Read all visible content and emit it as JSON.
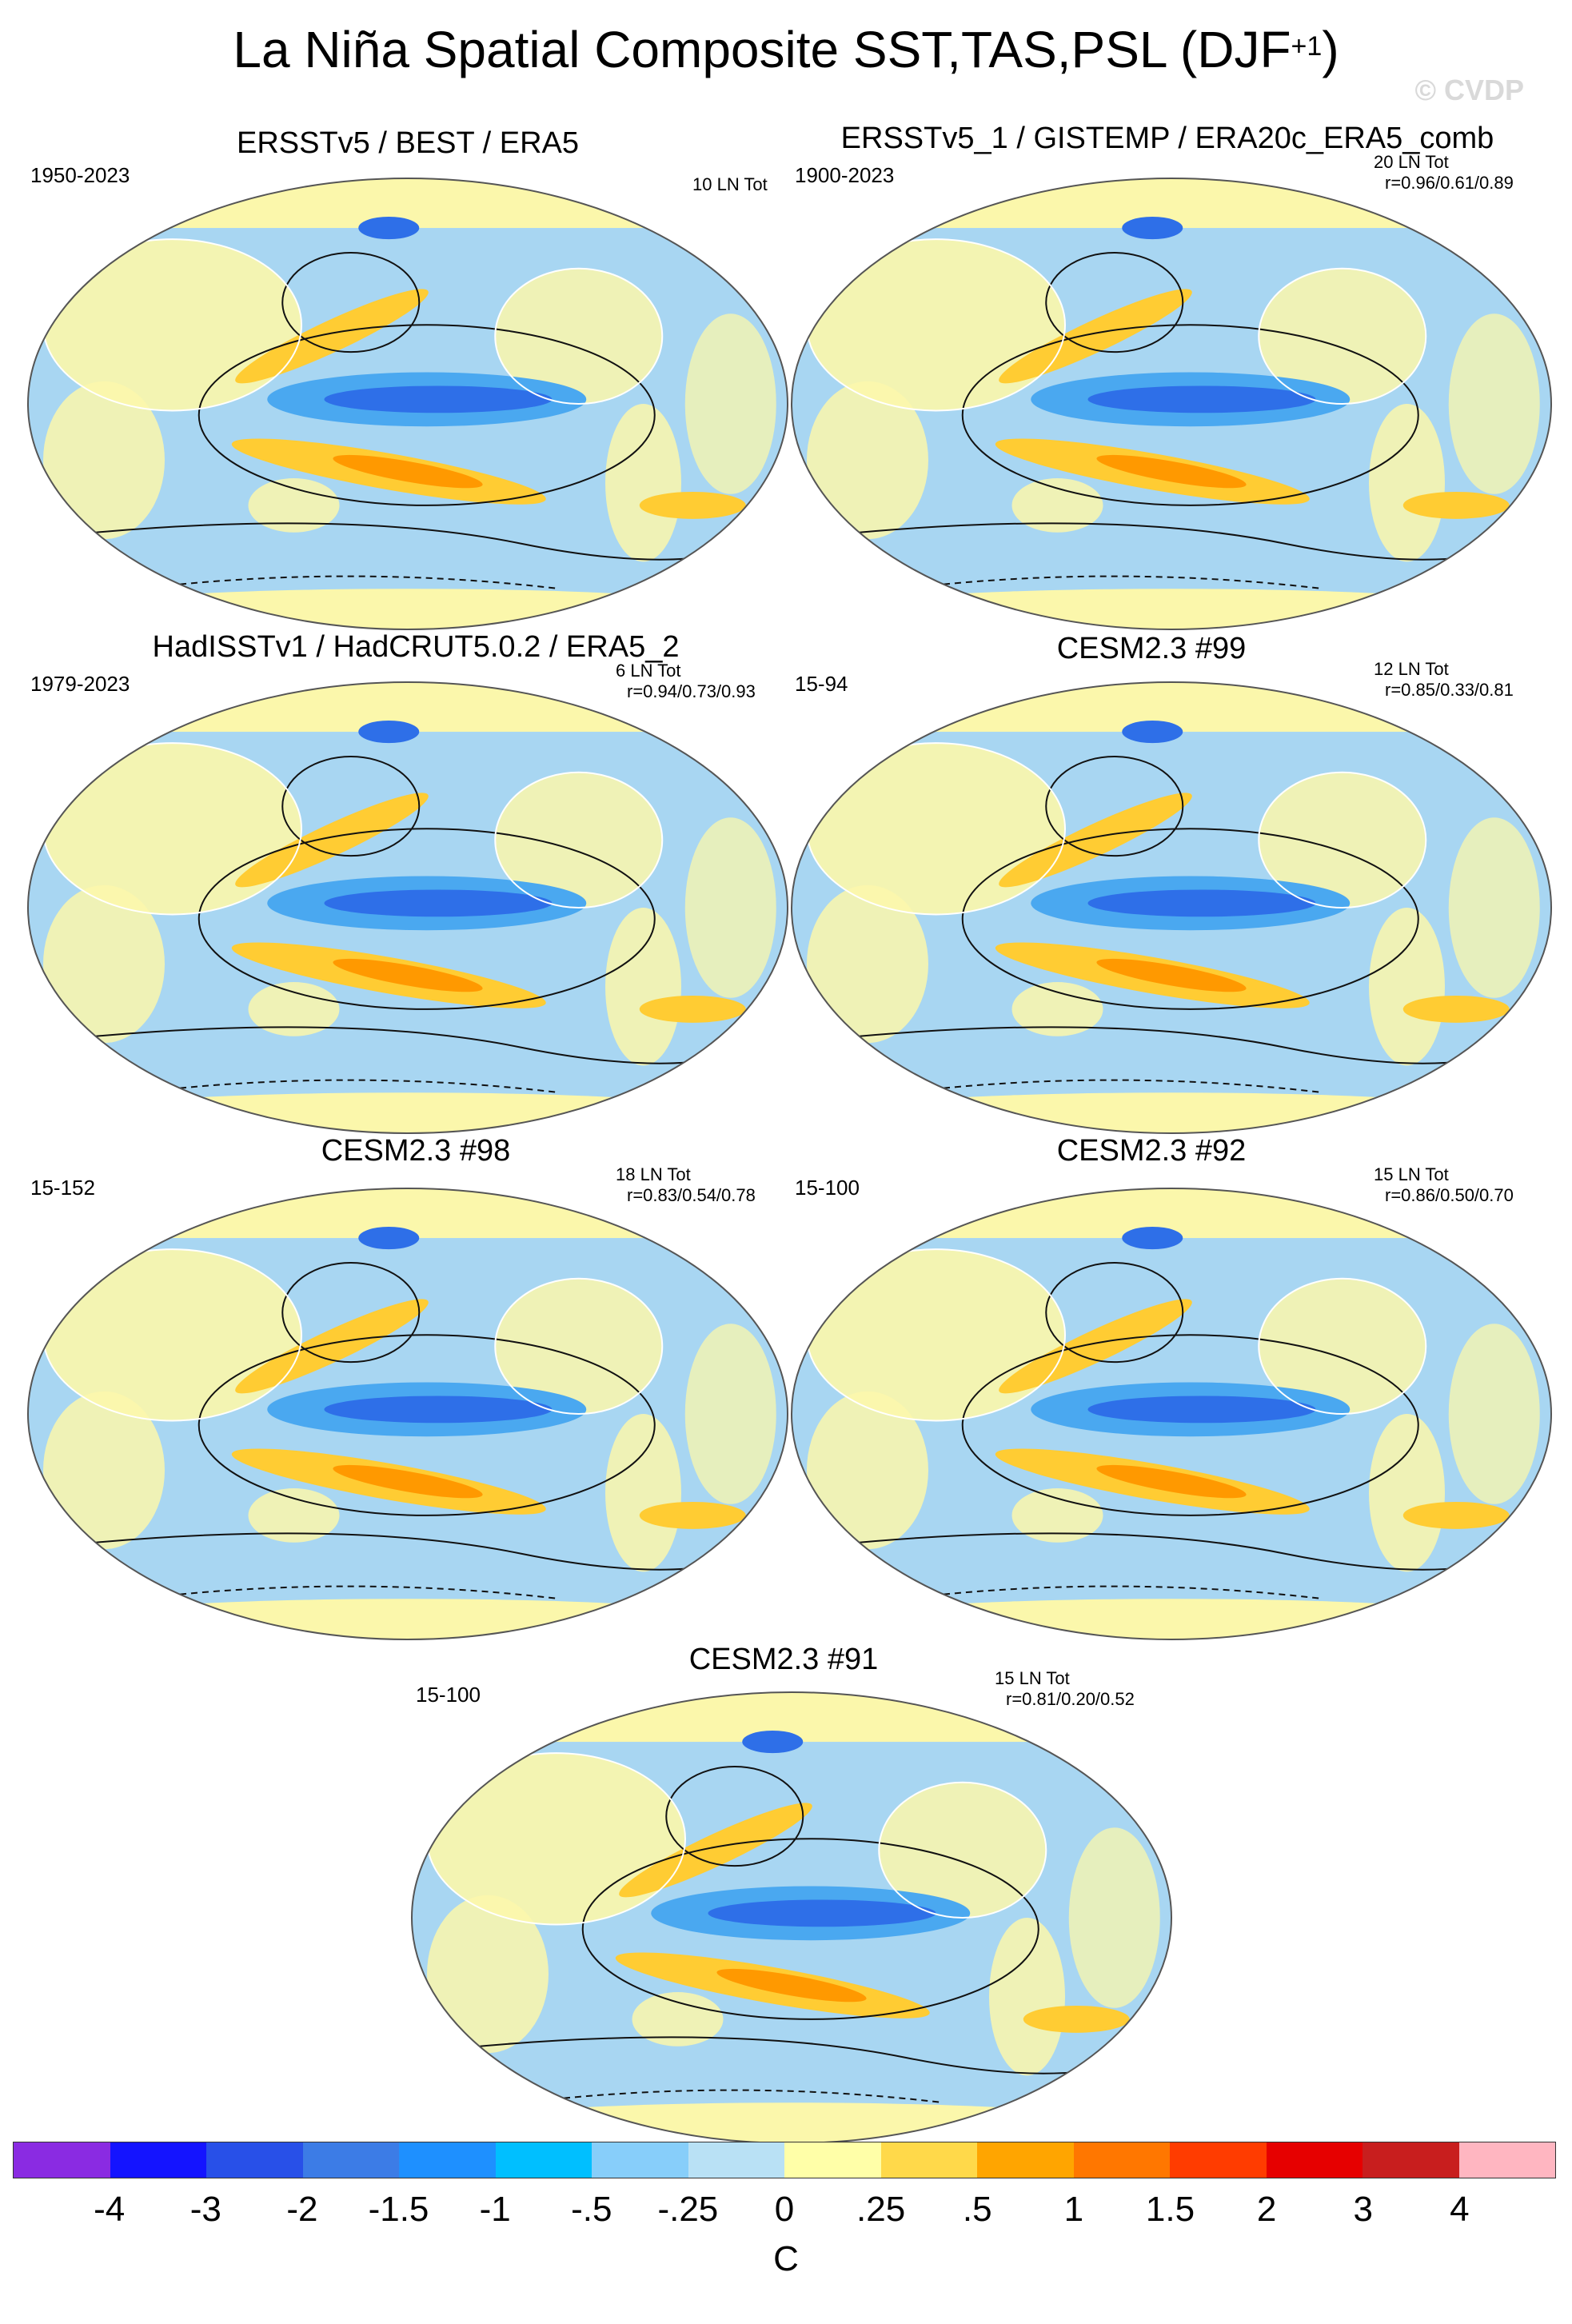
{
  "figure": {
    "title_main": "La Niña Spatial Composite SST,TAS,PSL (DJF",
    "title_sup": "+1",
    "title_close": ")",
    "watermark": "© CVDP"
  },
  "panels": [
    {
      "title": "ERSSTv5 / BEST / ERA5",
      "years": "1950-2023",
      "count": "10 LN Tot",
      "corr": ""
    },
    {
      "title": "ERSSTv5_1 / GISTEMP / ERA20c_ERA5_comb",
      "years": "1900-2023",
      "count": "20 LN Tot",
      "corr": "r=0.96/0.61/0.89"
    },
    {
      "title": "HadISSTv1 / HadCRUT5.0.2 / ERA5_2",
      "years": "1979-2023",
      "count": "6 LN Tot",
      "corr": "r=0.94/0.73/0.93"
    },
    {
      "title": "CESM2.3 #99",
      "years": "15-94",
      "count": "12 LN Tot",
      "corr": "r=0.85/0.33/0.81"
    },
    {
      "title": "CESM2.3 #98",
      "years": "15-152",
      "count": "18 LN Tot",
      "corr": "r=0.83/0.54/0.78"
    },
    {
      "title": "CESM2.3 #92",
      "years": "15-100",
      "count": "15 LN Tot",
      "corr": "r=0.86/0.50/0.70"
    },
    {
      "title": "CESM2.3 #91",
      "years": "15-100",
      "count": "15 LN Tot",
      "corr": "r=0.81/0.20/0.52"
    }
  ],
  "colorbar": {
    "labels": [
      "-4",
      "-3",
      "-2",
      "-1.5",
      "-1",
      "-.5",
      "-.25",
      "0",
      ".25",
      ".5",
      "1",
      "1.5",
      "2",
      "3",
      "4"
    ],
    "colors": [
      "#8a2be2",
      "#1414ff",
      "#2850e8",
      "#3c7ce6",
      "#1e90ff",
      "#00bfff",
      "#87cefa",
      "#b9e1f5",
      "#ffffa8",
      "#ffd94a",
      "#ffa500",
      "#ff7700",
      "#ff3c00",
      "#e60000",
      "#c81e1e",
      "#ffb6c1"
    ],
    "unit": "C"
  },
  "colors": {
    "land_fill": "#fbf7ab",
    "ocean_base": "#a8d6f2",
    "cold_core": "#2e6fe8",
    "cold_mid": "#4aa8f0",
    "warm": "#ffcc33",
    "warm_strong": "#ff9900",
    "contour": "#111111",
    "coast": "#ffffff"
  }
}
